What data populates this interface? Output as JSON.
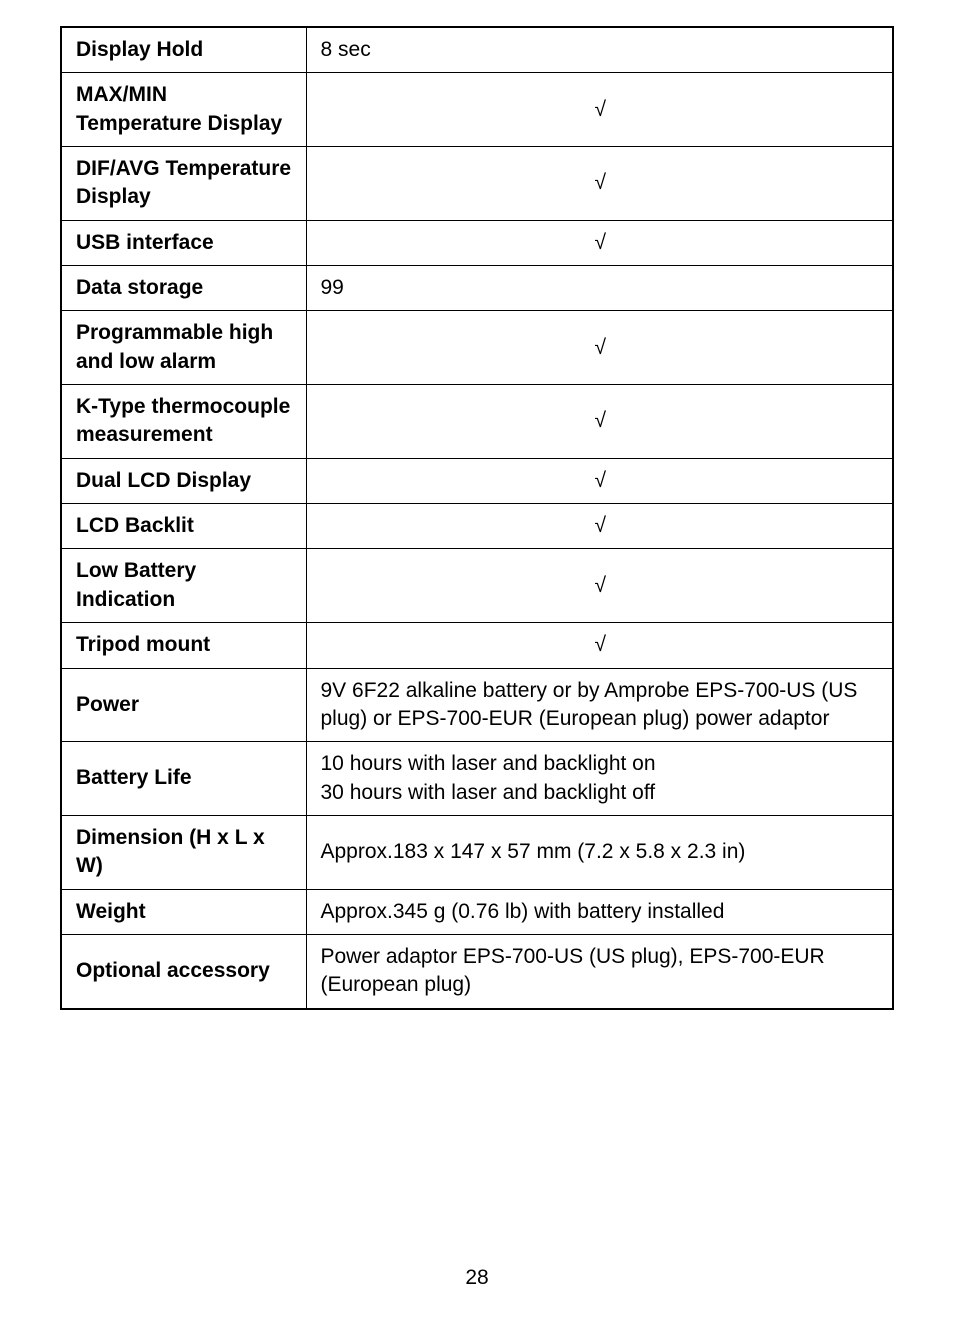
{
  "check": "√",
  "rows": [
    {
      "label": "Display Hold",
      "value": "8 sec",
      "center": false,
      "isCheck": false
    },
    {
      "label": "MAX/MIN Temperature Display",
      "value": "",
      "center": true,
      "isCheck": true
    },
    {
      "label": "DIF/AVG Temperature Display",
      "value": "",
      "center": true,
      "isCheck": true
    },
    {
      "label": "USB interface",
      "value": "",
      "center": true,
      "isCheck": true
    },
    {
      "label": "Data storage",
      "value": "99",
      "center": false,
      "isCheck": false
    },
    {
      "label": "Programmable high and low alarm",
      "value": "",
      "center": true,
      "isCheck": true
    },
    {
      "label": "K-Type thermocouple measurement",
      "value": "",
      "center": true,
      "isCheck": true
    },
    {
      "label": "Dual LCD Display",
      "value": "",
      "center": true,
      "isCheck": true
    },
    {
      "label": "LCD Backlit",
      "value": "",
      "center": true,
      "isCheck": true
    },
    {
      "label": "Low Battery Indication",
      "value": "",
      "center": true,
      "isCheck": true
    },
    {
      "label": "Tripod mount",
      "value": "",
      "center": true,
      "isCheck": true
    },
    {
      "label": "Power",
      "value": "9V 6F22 alkaline battery or by Amprobe EPS-700-US (US plug) or EPS-700-EUR (European plug) power adaptor",
      "center": false,
      "isCheck": false
    },
    {
      "label": "Battery Life",
      "value": "10 hours with laser and backlight on\n30 hours with laser and backlight off",
      "center": false,
      "isCheck": false
    },
    {
      "label": "Dimension (H x L x W)",
      "value": "Approx.183 x 147 x 57 mm (7.2 x 5.8 x 2.3 in)",
      "center": false,
      "isCheck": false
    },
    {
      "label": "Weight",
      "value": "Approx.345 g (0.76 lb) with battery installed",
      "center": false,
      "isCheck": false
    },
    {
      "label": "Optional accessory",
      "value": "Power adaptor EPS-700-US (US plug), EPS-700-EUR (European plug)",
      "center": false,
      "isCheck": false
    }
  ],
  "pageNumber": "28"
}
